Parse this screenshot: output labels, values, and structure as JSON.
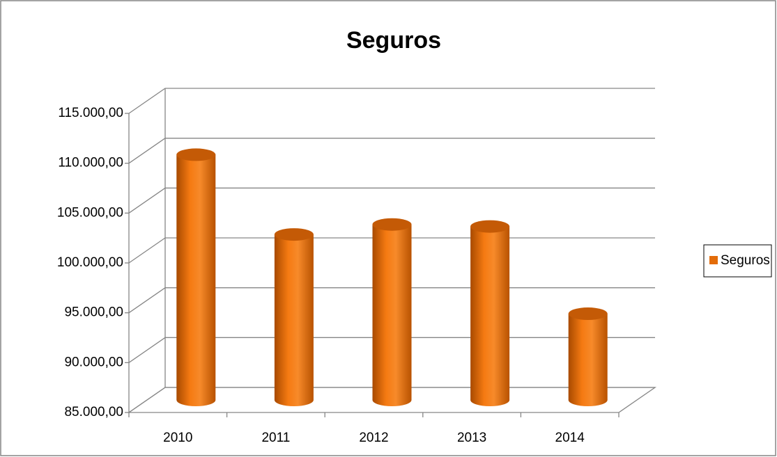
{
  "chart_data": {
    "type": "bar3d",
    "title": "Seguros",
    "categories": [
      "2010",
      "2011",
      "2012",
      "2013",
      "2014"
    ],
    "series": [
      {
        "name": "Seguros",
        "color": "#e36c09",
        "values": [
          109600,
          101600,
          102600,
          102400,
          93650
        ]
      }
    ],
    "ylim": [
      85000,
      115000
    ],
    "yticks": [
      {
        "value": 85000,
        "label": "85.000,00"
      },
      {
        "value": 90000,
        "label": "90.000,00"
      },
      {
        "value": 95000,
        "label": "95.000,00"
      },
      {
        "value": 100000,
        "label": "100.000,00"
      },
      {
        "value": 105000,
        "label": "105.000,00"
      },
      {
        "value": 110000,
        "label": "110.000,00"
      },
      {
        "value": 115000,
        "label": "115.000,00"
      }
    ],
    "grid": true,
    "legend": "right"
  }
}
